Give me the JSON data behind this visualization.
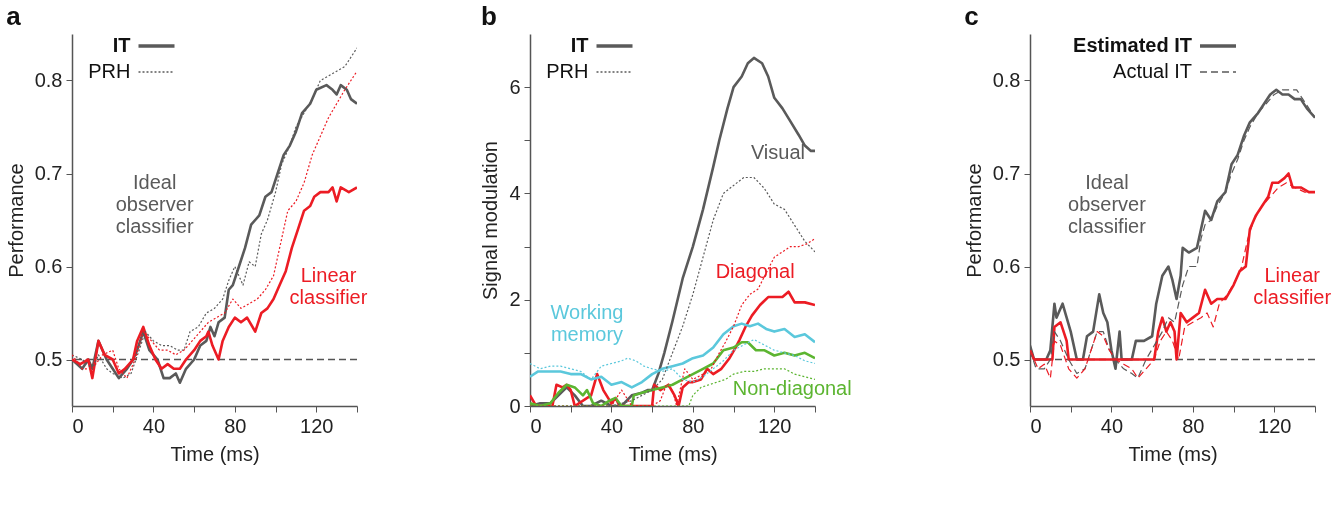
{
  "chart_data": [
    {
      "type": "line",
      "title": "a",
      "xlabel": "Time (ms)",
      "ylabel": "Performance",
      "xlim": [
        0,
        140
      ],
      "xticks": [
        0,
        {
          "value": 20,
          "label": null
        },
        40,
        {
          "value": 60,
          "label": null
        },
        80,
        {
          "value": 100,
          "label": null
        },
        120,
        {
          "value": 140,
          "label": null
        }
      ],
      "ylim": [
        0.45,
        0.85
      ],
      "yticks": [
        0.5,
        0.6,
        0.7,
        0.8
      ],
      "grid": false,
      "legend": "top left",
      "annotations": [
        "Ideal observer classifier",
        "Linear classifier"
      ],
      "ref_lines": [
        {
          "axis": "y",
          "value": 0.5,
          "line_style": "dashed",
          "color": "#555555"
        }
      ],
      "series": [
        {
          "name": "IT",
          "color": "#5a5a5a",
          "line_style": "solid",
          "x": [
            0,
            5,
            8,
            10,
            13,
            17,
            20,
            23,
            27,
            30,
            32,
            35,
            38,
            42,
            45,
            48,
            51,
            53,
            56,
            60,
            63,
            66,
            68,
            70,
            72,
            75,
            77,
            79,
            82,
            85,
            88,
            92,
            95,
            98,
            101,
            104,
            107,
            110,
            113,
            117,
            120,
            125,
            128,
            130,
            132,
            135,
            137,
            140
          ],
          "values": [
            0.5,
            0.49,
            0.5,
            0.49,
            0.52,
            0.5,
            0.49,
            0.48,
            0.49,
            0.5,
            0.51,
            0.53,
            0.51,
            0.5,
            0.48,
            0.48,
            0.485,
            0.475,
            0.49,
            0.5,
            0.515,
            0.52,
            0.535,
            0.525,
            0.54,
            0.545,
            0.575,
            0.58,
            0.6,
            0.62,
            0.645,
            0.655,
            0.675,
            0.68,
            0.7,
            0.72,
            0.73,
            0.745,
            0.765,
            0.775,
            0.79,
            0.795,
            0.79,
            0.785,
            0.795,
            0.79,
            0.78,
            0.775
          ]
        },
        {
          "color": "#ec1c24",
          "line_style": "solid",
          "x": [
            0,
            4,
            8,
            10,
            13,
            16,
            20,
            23,
            26,
            30,
            32,
            35,
            38,
            41,
            44,
            47,
            50,
            53,
            56,
            60,
            63,
            66,
            67,
            69,
            72,
            74,
            77,
            80,
            83,
            86,
            90,
            93,
            96,
            99,
            102,
            105,
            108,
            111,
            114,
            117,
            119,
            122,
            126,
            128,
            130,
            132,
            136,
            140
          ],
          "values": [
            0.5,
            0.495,
            0.5,
            0.48,
            0.52,
            0.505,
            0.5,
            0.485,
            0.49,
            0.5,
            0.52,
            0.535,
            0.515,
            0.5,
            0.49,
            0.495,
            0.49,
            0.49,
            0.5,
            0.51,
            0.52,
            0.525,
            0.53,
            0.515,
            0.5,
            0.52,
            0.535,
            0.545,
            0.54,
            0.545,
            0.53,
            0.55,
            0.555,
            0.565,
            0.58,
            0.595,
            0.62,
            0.64,
            0.66,
            0.665,
            0.675,
            0.68,
            0.68,
            0.685,
            0.67,
            0.685,
            0.68,
            0.685
          ]
        },
        {
          "name": "PRH",
          "color": "#5a5a5a",
          "line_style": "dotted",
          "x": [
            0,
            5,
            10,
            13,
            17,
            20,
            25,
            29,
            33,
            36,
            40,
            44,
            48,
            52,
            55,
            58,
            62,
            66,
            70,
            74,
            77,
            80,
            84,
            87,
            90,
            93,
            96,
            100,
            103,
            107,
            110,
            114,
            118,
            122,
            126,
            130,
            134,
            137,
            140
          ],
          "values": [
            0.505,
            0.5,
            0.49,
            0.505,
            0.49,
            0.485,
            0.48,
            0.485,
            0.51,
            0.53,
            0.52,
            0.515,
            0.515,
            0.51,
            0.51,
            0.53,
            0.535,
            0.55,
            0.555,
            0.565,
            0.585,
            0.6,
            0.58,
            0.605,
            0.6,
            0.635,
            0.65,
            0.68,
            0.71,
            0.73,
            0.75,
            0.765,
            0.78,
            0.8,
            0.805,
            0.81,
            0.815,
            0.825,
            0.835
          ]
        },
        {
          "color": "#ec1c24",
          "line_style": "dotted",
          "x": [
            0,
            5,
            10,
            15,
            20,
            23,
            27,
            31,
            35,
            39,
            43,
            47,
            51,
            55,
            59,
            63,
            67,
            71,
            75,
            79,
            83,
            87,
            91,
            95,
            99,
            103,
            106,
            110,
            114,
            118,
            122,
            126,
            130,
            134,
            137,
            140
          ],
          "values": [
            0.505,
            0.49,
            0.49,
            0.505,
            0.51,
            0.49,
            0.48,
            0.5,
            0.53,
            0.52,
            0.51,
            0.51,
            0.505,
            0.51,
            0.52,
            0.53,
            0.54,
            0.545,
            0.55,
            0.565,
            0.555,
            0.56,
            0.565,
            0.575,
            0.59,
            0.63,
            0.66,
            0.67,
            0.69,
            0.72,
            0.74,
            0.76,
            0.775,
            0.79,
            0.8,
            0.81
          ]
        }
      ]
    },
    {
      "type": "line",
      "title": "b",
      "xlabel": "Time (ms)",
      "ylabel": "Signal modulation",
      "xlim": [
        0,
        140
      ],
      "xticks": [
        0,
        {
          "value": 20,
          "label": null
        },
        40,
        {
          "value": 60,
          "label": null
        },
        80,
        {
          "value": 100,
          "label": null
        },
        120,
        {
          "value": 140,
          "label": null
        }
      ],
      "ylim": [
        0,
        7
      ],
      "yticks": [
        0,
        {
          "value": 1,
          "label": null
        },
        2,
        {
          "value": 3,
          "label": null
        },
        4,
        {
          "value": 5,
          "label": null
        },
        6
      ],
      "grid": false,
      "legend": "top left",
      "annotations": [
        "Visual",
        "Diagonal",
        "Working memory",
        "Non-diagonal"
      ],
      "series": [
        {
          "name": "IT",
          "color": "#5a5a5a",
          "line_style": "solid",
          "x": [
            0,
            5,
            10,
            14,
            18,
            22,
            26,
            30,
            35,
            40,
            45,
            50,
            55,
            58,
            60,
            63,
            66,
            70,
            75,
            80,
            85,
            90,
            93,
            97,
            100,
            104,
            107,
            110,
            114,
            117,
            120,
            124,
            128,
            132,
            135,
            138,
            140
          ],
          "values": [
            0,
            0.05,
            0.05,
            0.2,
            0.35,
            0.2,
            0,
            0,
            0.1,
            0,
            0,
            0.2,
            0.25,
            0.3,
            0.3,
            0.6,
            1.0,
            1.6,
            2.4,
            3.0,
            3.7,
            4.5,
            5.0,
            5.6,
            6.0,
            6.2,
            6.45,
            6.55,
            6.45,
            6.2,
            5.8,
            5.6,
            5.35,
            5.1,
            4.9,
            4.8,
            4.8
          ]
        },
        {
          "color": "#ec1c24",
          "line_style": "solid",
          "x": [
            0,
            3,
            11,
            13,
            16,
            18,
            20,
            22,
            30,
            33,
            36,
            40,
            42,
            44,
            60,
            61,
            64,
            68,
            71,
            73,
            75,
            78,
            80,
            84,
            87,
            90,
            94,
            98,
            101,
            103,
            106,
            109,
            113,
            117,
            120,
            124,
            127,
            130,
            135,
            140
          ],
          "values": [
            0.2,
            0,
            0,
            0.4,
            0.35,
            0.4,
            0.3,
            0,
            0.2,
            0.6,
            0.3,
            0.05,
            0.15,
            0,
            0,
            0.4,
            0.3,
            0.4,
            0.2,
            0,
            0.35,
            0.45,
            0.45,
            0.5,
            0.7,
            0.6,
            0.7,
            0.9,
            1.1,
            1.25,
            1.5,
            1.7,
            1.9,
            2.05,
            2.05,
            2.05,
            2.15,
            1.95,
            1.95,
            1.9
          ]
        },
        {
          "color": "#5bc8dc",
          "line_style": "solid",
          "x": [
            0,
            4,
            10,
            15,
            20,
            25,
            30,
            35,
            40,
            45,
            50,
            55,
            60,
            65,
            70,
            75,
            80,
            85,
            90,
            95,
            100,
            104,
            108,
            112,
            116,
            120,
            125,
            130,
            135,
            140
          ],
          "values": [
            0.55,
            0.65,
            0.65,
            0.65,
            0.6,
            0.6,
            0.5,
            0.55,
            0.4,
            0.45,
            0.35,
            0.45,
            0.6,
            0.7,
            0.75,
            0.8,
            0.9,
            0.95,
            1.1,
            1.35,
            1.5,
            1.55,
            1.5,
            1.55,
            1.45,
            1.4,
            1.45,
            1.3,
            1.35,
            1.2
          ]
        },
        {
          "color": "#5cb531",
          "line_style": "solid",
          "x": [
            0,
            5,
            10,
            14,
            18,
            22,
            26,
            28,
            31,
            35,
            39,
            42,
            45,
            50,
            51,
            55,
            60,
            65,
            70,
            75,
            80,
            85,
            90,
            95,
            100,
            104,
            107,
            111,
            115,
            120,
            125,
            130,
            135,
            140
          ],
          "values": [
            0.05,
            0,
            0.05,
            0.25,
            0.4,
            0.35,
            0.2,
            0.3,
            0.05,
            0,
            0.1,
            0.15,
            0,
            0,
            0.2,
            0.25,
            0.3,
            0.35,
            0.4,
            0.5,
            0.6,
            0.7,
            0.8,
            1.05,
            1.1,
            1.2,
            1.2,
            1.05,
            1.05,
            0.95,
            1.0,
            0.95,
            1.0,
            0.9
          ]
        },
        {
          "name": "PRH",
          "color": "#5a5a5a",
          "line_style": "dotted",
          "x": [
            0,
            40,
            50,
            55,
            60,
            65,
            70,
            75,
            80,
            85,
            90,
            95,
            100,
            105,
            110,
            115,
            120,
            125,
            130,
            135,
            140
          ],
          "values": [
            0,
            0,
            0.1,
            0.2,
            0.3,
            0.5,
            1.0,
            1.5,
            2.1,
            2.8,
            3.5,
            4.0,
            4.15,
            4.3,
            4.3,
            4.1,
            3.8,
            3.7,
            3.4,
            3.1,
            2.9
          ]
        },
        {
          "color": "#ec1c24",
          "line_style": "dotted",
          "x": [
            0,
            40,
            45,
            50,
            60,
            64,
            67,
            70,
            72,
            76,
            80,
            85,
            89,
            93,
            96,
            100,
            104,
            108,
            112,
            116,
            120,
            124,
            128,
            132,
            136,
            140
          ],
          "values": [
            0,
            0,
            0.3,
            0,
            0,
            0.1,
            0.4,
            0.3,
            0,
            0.7,
            0.5,
            0.6,
            0.7,
            1.0,
            1.2,
            1.5,
            1.9,
            2.1,
            2.2,
            2.5,
            2.8,
            2.9,
            3.0,
            3.0,
            3.05,
            3.15
          ]
        },
        {
          "color": "#5bc8dc",
          "line_style": "dotted",
          "x": [
            0,
            5,
            10,
            15,
            20,
            25,
            30,
            35,
            40,
            45,
            48,
            52,
            56,
            60,
            65,
            70,
            75,
            80,
            85,
            90,
            95,
            100,
            105,
            110,
            115,
            120,
            125,
            130,
            135,
            140
          ],
          "values": [
            0.8,
            0.7,
            0.75,
            0.75,
            0.7,
            0.65,
            0.5,
            0.75,
            0.8,
            0.85,
            0.9,
            0.85,
            0.75,
            0.7,
            0.65,
            0.7,
            0.5,
            0.45,
            0.55,
            0.7,
            0.85,
            1.05,
            1.15,
            1.25,
            1.15,
            1.05,
            1.0,
            0.95,
            0.85,
            0.8
          ]
        },
        {
          "color": "#5cb531",
          "line_style": "dotted",
          "x": [
            0,
            78,
            80,
            84,
            88,
            92,
            96,
            100,
            105,
            110,
            115,
            120,
            125,
            130,
            135,
            140
          ],
          "values": [
            0,
            0,
            0.2,
            0.35,
            0.4,
            0.45,
            0.5,
            0.6,
            0.65,
            0.65,
            0.7,
            0.7,
            0.7,
            0.6,
            0.55,
            0.5
          ]
        }
      ]
    },
    {
      "type": "line",
      "title": "c",
      "xlabel": "Time (ms)",
      "ylabel": "Performance",
      "xlim": [
        0,
        140
      ],
      "xticks": [
        0,
        {
          "value": 20,
          "label": null
        },
        40,
        {
          "value": 60,
          "label": null
        },
        80,
        {
          "value": 100,
          "label": null
        },
        120,
        {
          "value": 140,
          "label": null
        }
      ],
      "ylim": [
        0.45,
        0.85
      ],
      "yticks": [
        0.5,
        0.6,
        0.7,
        0.8
      ],
      "grid": false,
      "legend": "top left",
      "annotations": [
        "Ideal observer classifier",
        "Linear classifier"
      ],
      "ref_lines": [
        {
          "axis": "y",
          "value": 0.5,
          "line_style": "dashed",
          "color": "#555555"
        }
      ],
      "series": [
        {
          "name": "Estimated IT",
          "color": "#5a5a5a",
          "line_style": "solid",
          "x": [
            0,
            2,
            8,
            10,
            12,
            13,
            16,
            18,
            20,
            23,
            26,
            28,
            31,
            34,
            36,
            38,
            40,
            42,
            44,
            45,
            50,
            52,
            56,
            60,
            62,
            65,
            68,
            70,
            72,
            74,
            75,
            78,
            82,
            84,
            86,
            89,
            92,
            96,
            99,
            102,
            105,
            108,
            112,
            115,
            118,
            121,
            124,
            127,
            130,
            133,
            136,
            140
          ],
          "values": [
            0.515,
            0.5,
            0.5,
            0.51,
            0.56,
            0.545,
            0.56,
            0.545,
            0.53,
            0.5,
            0.5,
            0.525,
            0.53,
            0.57,
            0.55,
            0.54,
            0.51,
            0.49,
            0.53,
            0.5,
            0.5,
            0.52,
            0.52,
            0.525,
            0.56,
            0.59,
            0.6,
            0.585,
            0.565,
            0.59,
            0.62,
            0.615,
            0.62,
            0.64,
            0.66,
            0.65,
            0.67,
            0.68,
            0.71,
            0.72,
            0.74,
            0.755,
            0.765,
            0.775,
            0.785,
            0.79,
            0.785,
            0.785,
            0.78,
            0.78,
            0.77,
            0.76
          ]
        },
        {
          "color": "#ec1c24",
          "line_style": "solid",
          "x": [
            0,
            2,
            11,
            12,
            15,
            18,
            19,
            40,
            61,
            63,
            65,
            67,
            69,
            71,
            72,
            74,
            77,
            80,
            83,
            86,
            89,
            92,
            96,
            100,
            103,
            106,
            108,
            111,
            114,
            117,
            119,
            122,
            125,
            127,
            129,
            133,
            137,
            140
          ],
          "values": [
            0.51,
            0.5,
            0.5,
            0.535,
            0.54,
            0.52,
            0.5,
            0.5,
            0.5,
            0.53,
            0.545,
            0.53,
            0.54,
            0.53,
            0.5,
            0.55,
            0.54,
            0.545,
            0.55,
            0.575,
            0.56,
            0.565,
            0.565,
            0.58,
            0.595,
            0.6,
            0.64,
            0.655,
            0.665,
            0.675,
            0.69,
            0.69,
            0.695,
            0.7,
            0.685,
            0.685,
            0.68,
            0.68
          ]
        },
        {
          "name": "Actual IT",
          "color": "#5a5a5a",
          "line_style": "dashed",
          "x": [
            0,
            3,
            7,
            10,
            12,
            15,
            19,
            23,
            27,
            30,
            33,
            36,
            39,
            42,
            46,
            50,
            53,
            57,
            61,
            65,
            68,
            71,
            75,
            78,
            82,
            84,
            86,
            89,
            92,
            96,
            99,
            102,
            105,
            108,
            112,
            116,
            120,
            124,
            128,
            131,
            134,
            137,
            140
          ],
          "values": [
            0.51,
            0.49,
            0.49,
            0.5,
            0.53,
            0.52,
            0.5,
            0.485,
            0.49,
            0.51,
            0.53,
            0.53,
            0.51,
            0.5,
            0.49,
            0.485,
            0.48,
            0.5,
            0.515,
            0.53,
            0.545,
            0.54,
            0.58,
            0.6,
            0.6,
            0.63,
            0.645,
            0.65,
            0.665,
            0.68,
            0.7,
            0.715,
            0.735,
            0.75,
            0.765,
            0.775,
            0.785,
            0.79,
            0.79,
            0.79,
            0.78,
            0.77,
            0.76
          ]
        },
        {
          "color": "#ec1c24",
          "line_style": "dashed",
          "x": [
            0,
            4,
            7,
            10,
            12,
            15,
            19,
            23,
            27,
            30,
            33,
            36,
            39,
            42,
            46,
            50,
            53,
            57,
            61,
            64,
            67,
            70,
            73,
            76,
            80,
            84,
            87,
            90,
            93,
            97,
            101,
            104,
            107,
            110,
            114,
            118,
            122,
            126,
            130,
            135,
            140
          ],
          "values": [
            0.51,
            0.49,
            0.495,
            0.48,
            0.52,
            0.515,
            0.49,
            0.48,
            0.49,
            0.51,
            0.53,
            0.525,
            0.51,
            0.5,
            0.495,
            0.49,
            0.48,
            0.49,
            0.5,
            0.52,
            0.53,
            0.52,
            0.5,
            0.535,
            0.54,
            0.545,
            0.55,
            0.535,
            0.56,
            0.57,
            0.585,
            0.6,
            0.63,
            0.65,
            0.665,
            0.675,
            0.685,
            0.69,
            0.685,
            0.68,
            0.68
          ]
        }
      ]
    }
  ]
}
